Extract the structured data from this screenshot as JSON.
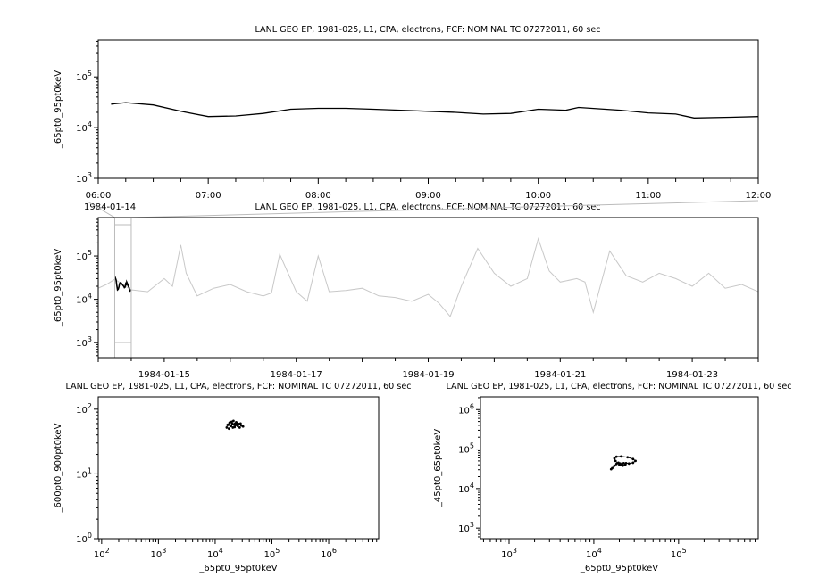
{
  "chart_data": [
    {
      "id": "p1",
      "type": "line",
      "title": "LANL GEO EP, 1981-025, L1, CPA, electrons, FCF: NOMINAL TC 07272011, 60 sec",
      "ylabel": "_65pt0_95pt0keV",
      "xlabel": "",
      "xaxis": "time",
      "xlim": [
        "1984-01-14T06:00",
        "1984-01-14T12:00"
      ],
      "ylim": [
        1000,
        530000
      ],
      "yscale": "log",
      "x_tick_labels": [
        "06:00",
        "07:00",
        "08:00",
        "09:00",
        "10:00",
        "11:00",
        "12:00"
      ],
      "x_date_label": "1984-01-14",
      "y_tick_labels": [
        "10^3",
        "10^4",
        "10^5"
      ],
      "line_color": "#000000",
      "x": [
        "1984-01-14T06:07",
        "1984-01-14T06:15",
        "1984-01-14T06:30",
        "1984-01-14T06:45",
        "1984-01-14T07:00",
        "1984-01-14T07:15",
        "1984-01-14T07:30",
        "1984-01-14T07:45",
        "1984-01-14T08:00",
        "1984-01-14T08:15",
        "1984-01-14T08:30",
        "1984-01-14T08:45",
        "1984-01-14T09:00",
        "1984-01-14T09:15",
        "1984-01-14T09:30",
        "1984-01-14T09:45",
        "1984-01-14T10:00",
        "1984-01-14T10:15",
        "1984-01-14T10:22",
        "1984-01-14T10:45",
        "1984-01-14T11:00",
        "1984-01-14T11:15",
        "1984-01-14T11:25",
        "1984-01-14T11:45",
        "1984-01-14T12:00"
      ],
      "y": [
        29000,
        31000,
        28000,
        21000,
        16500,
        17000,
        19000,
        23000,
        24000,
        24000,
        23000,
        22000,
        21000,
        20000,
        18500,
        19000,
        23000,
        22000,
        25000,
        22000,
        19500,
        18500,
        15500,
        16000,
        16500
      ]
    },
    {
      "id": "p2",
      "type": "line",
      "title": "LANL GEO EP, 1981-025, L1, CPA, electrons, FCF: NOMINAL TC 07272011, 60 sec",
      "ylabel": "_65pt0_95pt0keV",
      "xlabel": "",
      "xaxis": "time",
      "xlim": [
        "1984-01-14T00:00",
        "1984-01-24T00:00"
      ],
      "ylim": [
        450,
        770000
      ],
      "yscale": "log",
      "x_tick_labels": [
        "1984-01-15",
        "1984-01-17",
        "1984-01-19",
        "1984-01-21",
        "1984-01-23"
      ],
      "y_tick_labels": [
        "10^3",
        "10^4",
        "10^5"
      ],
      "line_color": "#c8c8c8",
      "highlight_color": "#000000",
      "highlight_range": [
        "1984-01-14T06:00",
        "1984-01-14T12:00"
      ],
      "x": [
        "1984-01-14T00:00",
        "1984-01-14T03:00",
        "1984-01-14T06:00",
        "1984-01-14T12:00",
        "1984-01-14T18:00",
        "1984-01-15T00:00",
        "1984-01-15T03:00",
        "1984-01-15T06:00",
        "1984-01-15T08:00",
        "1984-01-15T12:00",
        "1984-01-15T18:00",
        "1984-01-16T00:00",
        "1984-01-16T06:00",
        "1984-01-16T12:00",
        "1984-01-16T15:00",
        "1984-01-16T18:00",
        "1984-01-17T00:00",
        "1984-01-17T04:00",
        "1984-01-17T08:00",
        "1984-01-17T12:00",
        "1984-01-17T18:00",
        "1984-01-18T00:00",
        "1984-01-18T06:00",
        "1984-01-18T12:00",
        "1984-01-18T18:00",
        "1984-01-19T00:00",
        "1984-01-19T04:00",
        "1984-01-19T08:00",
        "1984-01-19T12:00",
        "1984-01-19T18:00",
        "1984-01-20T00:00",
        "1984-01-20T06:00",
        "1984-01-20T12:00",
        "1984-01-20T16:00",
        "1984-01-20T20:00",
        "1984-01-21T00:00",
        "1984-01-21T06:00",
        "1984-01-21T09:00",
        "1984-01-21T12:00",
        "1984-01-21T18:00",
        "1984-01-22T00:00",
        "1984-01-22T06:00",
        "1984-01-22T12:00",
        "1984-01-22T18:00",
        "1984-01-23T00:00",
        "1984-01-23T06:00",
        "1984-01-23T12:00",
        "1984-01-23T18:00",
        "1984-01-24T00:00"
      ],
      "y": [
        18000,
        22000,
        29000,
        16500,
        15000,
        30000,
        20000,
        180000,
        40000,
        12000,
        18000,
        22000,
        15000,
        12000,
        14000,
        110000,
        15000,
        9000,
        100000,
        15000,
        16000,
        18000,
        12000,
        11000,
        9000,
        13000,
        8000,
        4000,
        20000,
        150000,
        40000,
        20000,
        30000,
        250000,
        45000,
        25000,
        30000,
        25000,
        5000,
        130000,
        35000,
        25000,
        40000,
        30000,
        20000,
        40000,
        18000,
        22000,
        15000
      ]
    },
    {
      "id": "p3",
      "type": "scatter",
      "title": "LANL GEO EP, 1981-025, L1, CPA, electrons, FCF: NOMINAL TC 07272011, 60 sec",
      "xlabel": "_65pt0_95pt0keV",
      "ylabel": "_600pt0_900pt0keV",
      "xscale": "log",
      "yscale": "log",
      "xlim": [
        87,
        7600000
      ],
      "ylim": [
        1,
        155
      ],
      "x_tick_labels": [
        "10^2",
        "10^3",
        "10^4",
        "10^5",
        "10^6"
      ],
      "y_tick_labels": [
        "10^0",
        "10^1",
        "10^2"
      ],
      "marker_color": "#000000",
      "points": [
        [
          16000,
          52
        ],
        [
          17000,
          58
        ],
        [
          18000,
          62
        ],
        [
          19000,
          55
        ],
        [
          20000,
          60
        ],
        [
          21000,
          66
        ],
        [
          22000,
          53
        ],
        [
          23000,
          57
        ],
        [
          24000,
          61
        ],
        [
          25000,
          55
        ],
        [
          26000,
          59
        ],
        [
          27000,
          52
        ],
        [
          29000,
          56
        ],
        [
          31000,
          54
        ],
        [
          17500,
          50
        ],
        [
          19500,
          64
        ],
        [
          21500,
          58
        ],
        [
          23500,
          63
        ],
        [
          18500,
          56
        ],
        [
          20500,
          52
        ],
        [
          22500,
          60
        ],
        [
          16500,
          57
        ],
        [
          24500,
          58
        ],
        [
          28000,
          60
        ]
      ]
    },
    {
      "id": "p4",
      "type": "scatter",
      "title": "LANL GEO EP, 1981-025, L1, CPA, electrons, FCF: NOMINAL TC 07272011, 60 sec",
      "xlabel": "_65pt0_95pt0keV",
      "ylabel": "_45pt0_65pt0keV",
      "xscale": "log",
      "yscale": "log",
      "xlim": [
        460,
        870000
      ],
      "ylim": [
        540,
        2100000
      ],
      "x_tick_labels": [
        "10^3",
        "10^4",
        "10^5"
      ],
      "y_tick_labels": [
        "10^3",
        "10^4",
        "10^5",
        "10^6"
      ],
      "marker_color": "#000000",
      "points": [
        [
          16000,
          31000
        ],
        [
          16500,
          33000
        ],
        [
          17500,
          38000
        ],
        [
          18500,
          42000
        ],
        [
          19500,
          45000
        ],
        [
          20500,
          43000
        ],
        [
          21500,
          41000
        ],
        [
          22500,
          44000
        ],
        [
          23500,
          40000
        ],
        [
          22000,
          38000
        ],
        [
          20000,
          40000
        ],
        [
          18000,
          50000
        ],
        [
          17500,
          58000
        ],
        [
          18500,
          64000
        ],
        [
          21000,
          65000
        ],
        [
          25000,
          62000
        ],
        [
          29000,
          56000
        ],
        [
          31000,
          50000
        ],
        [
          29000,
          45000
        ],
        [
          26000,
          43000
        ],
        [
          24000,
          44000
        ]
      ]
    }
  ]
}
